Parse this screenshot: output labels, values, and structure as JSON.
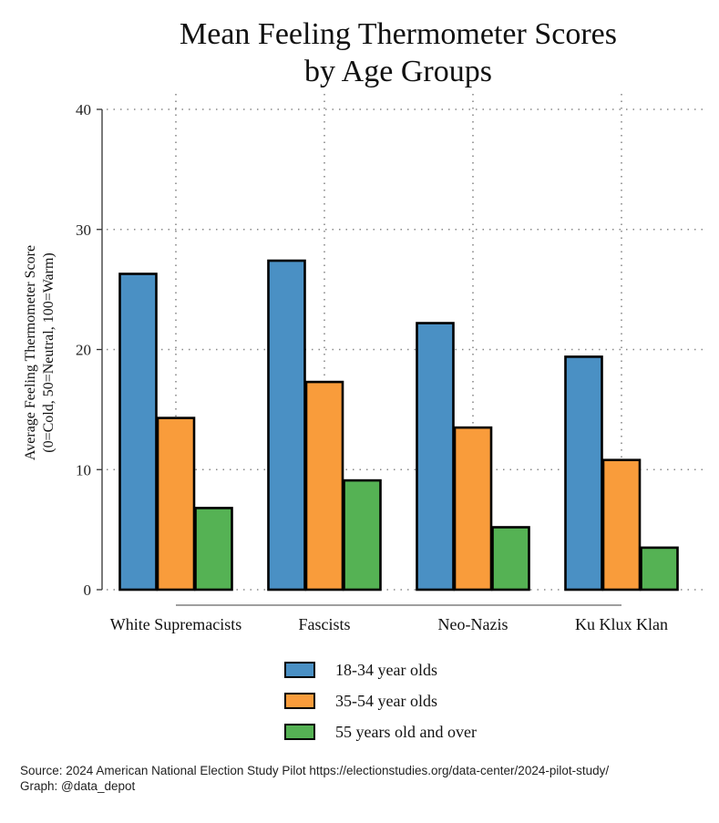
{
  "chart_data": {
    "type": "bar",
    "title_lines": [
      "Mean Feeling Thermometer Scores",
      "by Age Groups"
    ],
    "ylabel_lines": [
      "Average Feeling Thermometer Score",
      "(0=Cold, 50=Neutral, 100=Warm)"
    ],
    "xlabel": "",
    "ylim": [
      0,
      40
    ],
    "yticks": [
      "0",
      "10",
      "20",
      "30",
      "40"
    ],
    "grid": true,
    "legend_position": "bottom",
    "categories": [
      "White Supremacists",
      "Fascists",
      "Neo-Nazis",
      "Ku Klux Klan"
    ],
    "series": [
      {
        "name": "18-34 year olds",
        "color": "#4a90c4",
        "values": [
          26.3,
          27.4,
          22.2,
          19.4
        ]
      },
      {
        "name": "35-54 year olds",
        "color": "#f99c3b",
        "values": [
          14.3,
          17.3,
          13.5,
          10.8
        ]
      },
      {
        "name": "55 years old and over",
        "color": "#55b254",
        "values": [
          6.8,
          9.1,
          5.2,
          3.5
        ]
      }
    ]
  },
  "source_lines": [
    "Source: 2024 American National Election Study Pilot https://electionstudies.org/data-center/2024-pilot-study/",
    "Graph: @data_depot"
  ]
}
